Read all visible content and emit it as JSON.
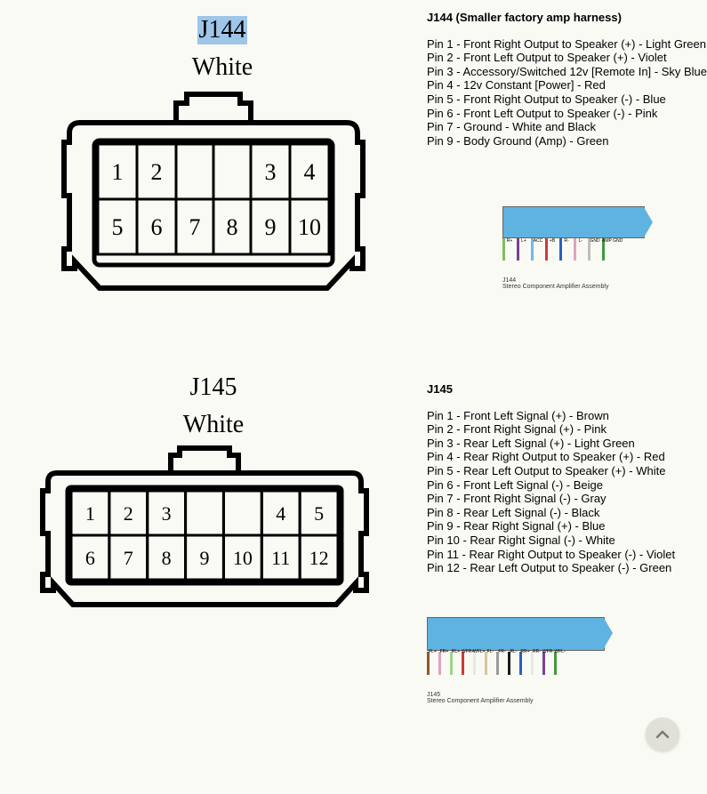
{
  "j144": {
    "conn_label": "J144",
    "conn_color_label": "White",
    "title": "J144 (Smaller factory amp harness)",
    "pins_top": [
      "1",
      "2",
      "",
      "",
      "3",
      "4"
    ],
    "pins_bot": [
      "5",
      "6",
      "7",
      "8",
      "9",
      "10"
    ],
    "lines": [
      "Pin 1 - Front Right Output to Speaker (+) - Light Green",
      "Pin 2 - Front Left Output to Speaker (+) - Violet",
      "Pin 3 - Accessory/Switched 12v [Remote In] - Sky Blue",
      "Pin 4 - 12v Constant [Power] - Red",
      "Pin 5 - Front Right Output to Speaker (-) - Blue",
      "Pin 6 - Front Left Output to Speaker (-) - Pink",
      "Pin 7 - Ground - White and Black",
      "Pin 9 - Body Ground (Amp) - Green"
    ],
    "wire_diag": {
      "wires": [
        {
          "num": "1",
          "color": "#7fbf5a"
        },
        {
          "num": "2",
          "color": "#7a3f9a"
        },
        {
          "num": "3",
          "color": "#6fb9e8"
        },
        {
          "num": "4",
          "color": "#cc3a3a"
        },
        {
          "num": "5",
          "color": "#2a5fbf"
        },
        {
          "num": "6",
          "color": "#e0a3c0"
        },
        {
          "num": "7",
          "color": "#bfbfbf"
        },
        {
          "num": "9",
          "color": "#3f9a3f"
        }
      ],
      "labels": [
        "R+",
        "L+",
        "ACC",
        "+B",
        "R-",
        "L-",
        "GND",
        "AMP GND"
      ],
      "jack": "J144",
      "caption": "Stereo Component Amplifier Assembly"
    }
  },
  "j145": {
    "conn_label": "J145",
    "conn_color_label": "White",
    "title": "J145",
    "pins_top": [
      "1",
      "2",
      "3",
      "",
      "",
      "4",
      "5"
    ],
    "pins_bot": [
      "6",
      "7",
      "8",
      "9",
      "10",
      "11",
      "12"
    ],
    "lines": [
      "Pin 1 - Front Left Signal (+) - Brown",
      "Pin 2 - Front Right Signal (+) - Pink",
      "Pin 3 - Rear Left Signal (+) - Light Green",
      "Pin 4 - Rear Right Output to Speaker (+) - Red",
      "Pin 5 - Rear Left Output to Speaker (+) - White",
      "Pin 6 - Front Left Signal (-) - Beige",
      "Pin 7 - Front Right Signal (-) - Gray",
      "Pin 8 - Rear Left Signal (-) - Black",
      "Pin 9 - Rear Right Signal (+) - Blue",
      "Pin 10 - Rear Right Signal (-) - White",
      "Pin 11 - Rear Right Output to Speaker (-) - Violet",
      "Pin 12 - Rear Left Output to Speaker (-) - Green"
    ],
    "wire_diag": {
      "wires": [
        {
          "num": "1",
          "color": "#8a5a2a"
        },
        {
          "num": "2",
          "color": "#e0a3c0"
        },
        {
          "num": "3",
          "color": "#9fd48a"
        },
        {
          "num": "4",
          "color": "#cc3a3a"
        },
        {
          "num": "5",
          "color": "#e8e8e8"
        },
        {
          "num": "6",
          "color": "#d8c49a"
        },
        {
          "num": "7",
          "color": "#9a9a9a"
        },
        {
          "num": "8",
          "color": "#1a1a1a"
        },
        {
          "num": "9",
          "color": "#2a5fbf"
        },
        {
          "num": "10",
          "color": "#e8e8e8"
        },
        {
          "num": "11",
          "color": "#7a3f9a"
        },
        {
          "num": "12",
          "color": "#3f9a3f"
        }
      ],
      "labels": [
        "FL+",
        "FR+",
        "RL+",
        "WFR+",
        "WFL+",
        "FL-",
        "FR-",
        "RL-",
        "RR+",
        "RR-",
        "WFR-",
        "WFL-"
      ],
      "jack": "J145",
      "caption": "Stereo Component Amplifier Assembly"
    }
  },
  "style": {
    "bg": "#fafaf5",
    "text": "#000000",
    "highlight_bg": "#9fc5e8",
    "plug_body": "#5fb3e0",
    "scroll_btn_bg": "#e0e0d8",
    "scroll_arrow": "#7a7a70"
  }
}
